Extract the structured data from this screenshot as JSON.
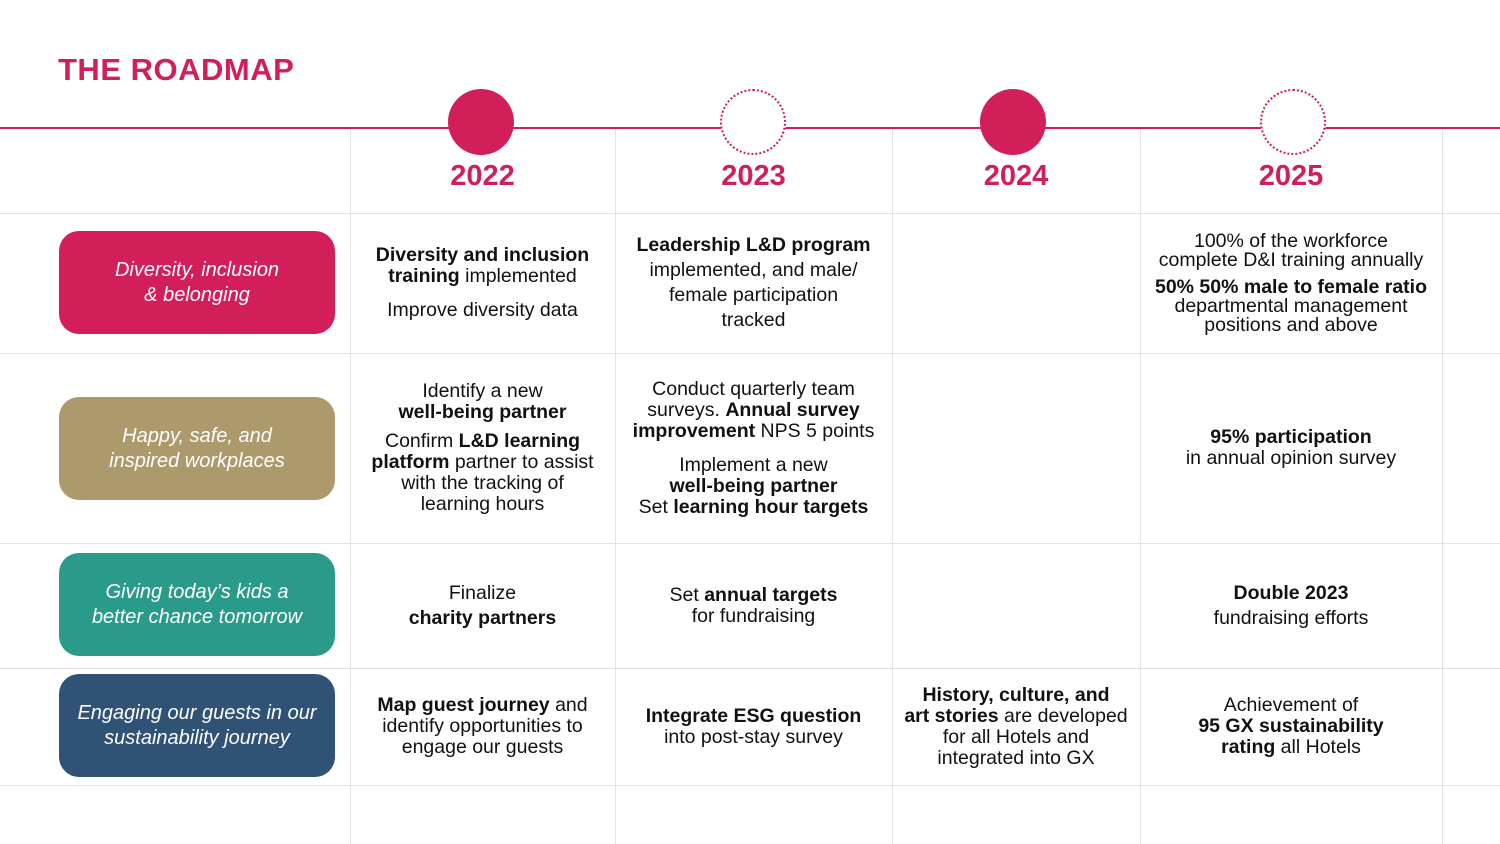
{
  "page": {
    "title": "THE ROADMAP"
  },
  "colors": {
    "accent": "#d21f5a",
    "pillite_dei": "#d21f5a",
    "pill_workplaces": "#ad9a6c",
    "pill_kids": "#2a9a8a",
    "pill_guests": "#2f5275"
  },
  "years": [
    "2022",
    "2023",
    "2024",
    "2025"
  ],
  "pillars": [
    {
      "line1": "Diversity, inclusion",
      "line2": "& belonging"
    },
    {
      "line1": "Happy, safe, and",
      "line2": "inspired workplaces"
    },
    {
      "line1": "Giving today’s kids a",
      "line2": "better chance tomorrow"
    },
    {
      "line1": "Engaging our guests in our",
      "line2": "sustainability journey"
    }
  ],
  "cells": {
    "r1_2022": {
      "a": "Diversity and inclusion",
      "b": "training",
      "c": " implemented",
      "d": "Improve diversity data"
    },
    "r1_2023": {
      "a": "Leadership L&D program",
      "b": "implemented, and male/",
      "c": "female participation",
      "d": "tracked"
    },
    "r1_2025": {
      "a": "100% of the workforce",
      "b": "complete D&I training annually",
      "c": "50% 50% male to female ratio",
      "d": "departmental management",
      "e": "positions and above"
    },
    "r2_2022": {
      "a": "Identify a new",
      "b": "well-being partner",
      "c": "Confirm ",
      "d": "L&D learning",
      "e": "platform",
      "f": " partner to assist",
      "g": "with the tracking of",
      "h": "learning hours"
    },
    "r2_2023": {
      "a": "Conduct quarterly team",
      "b": "surveys. ",
      "c": "Annual survey",
      "d": "improvement",
      "e": " NPS 5 points",
      "f": "Implement a new",
      "g": "well-being partner",
      "h": "Set ",
      "i": "learning hour targets"
    },
    "r2_2025": {
      "a": "95% participation",
      "b": "in annual opinion survey"
    },
    "r3_2022": {
      "a": "Finalize",
      "b": "charity partners"
    },
    "r3_2023": {
      "a": "Set ",
      "b": "annual targets",
      "c": "for fundraising"
    },
    "r3_2025": {
      "a": "Double 2023",
      "b": "fundraising efforts"
    },
    "r4_2022": {
      "a": "Map guest journey",
      "b": " and",
      "c": "identify opportunities to",
      "d": "engage our guests"
    },
    "r4_2023": {
      "a": "Integrate ESG question",
      "b": "into post-stay survey"
    },
    "r4_2024": {
      "a": "History, culture, and",
      "b": "art stories",
      "c": " are developed",
      "d": "for all Hotels and",
      "e": "integrated into GX"
    },
    "r4_2025": {
      "a": "Achievement of",
      "b": "95 GX sustainability",
      "c": "rating",
      "d": " all Hotels"
    }
  }
}
